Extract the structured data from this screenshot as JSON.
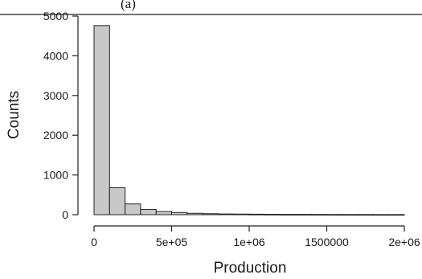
{
  "header": {
    "caption_fragment": "(a)"
  },
  "chart_data": {
    "type": "bar",
    "subtype": "histogram",
    "title": "",
    "xlabel": "Production",
    "ylabel": "Counts",
    "xlim": [
      0,
      2000000
    ],
    "ylim": [
      0,
      5000
    ],
    "y_ticks": [
      0,
      1000,
      2000,
      3000,
      4000,
      5000
    ],
    "y_tick_labels": [
      "0",
      "1000",
      "2000",
      "3000",
      "4000",
      "5000"
    ],
    "x_ticks": [
      0,
      500000,
      1000000,
      1500000,
      2000000
    ],
    "x_tick_labels": [
      "0",
      "5e+05",
      "1e+06",
      "1500000",
      "2e+06"
    ],
    "bin_width": 100000,
    "bin_edges": [
      0,
      100000,
      200000,
      300000,
      400000,
      500000,
      600000,
      700000,
      800000,
      900000,
      1000000,
      1100000,
      1200000,
      1300000,
      1400000,
      1500000,
      1600000,
      1700000,
      1800000,
      1900000,
      2000000
    ],
    "values": [
      4760,
      680,
      270,
      130,
      80,
      55,
      35,
      25,
      18,
      15,
      12,
      10,
      8,
      7,
      6,
      5,
      4,
      4,
      3,
      3
    ],
    "bar_fill": "#c8c8c8",
    "bar_stroke": "#222222",
    "grid": false,
    "legend": "none"
  }
}
